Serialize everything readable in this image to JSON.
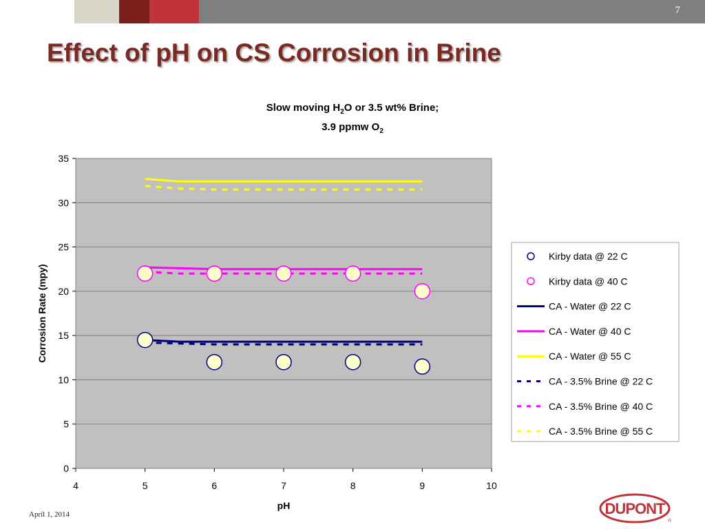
{
  "slide": {
    "title": "Effect of pH on CS Corrosion in Brine",
    "page_number": "7",
    "date": "April 1, 2014",
    "logo": "DUPONT",
    "colors": {
      "title": "#7a2a22",
      "bar_light": "#d9d5c9",
      "bar_red_dark": "#7a1f1a",
      "bar_red": "#c0333b",
      "bar_gray": "#7f7f7f"
    }
  },
  "chart_data": {
    "type": "scatter",
    "title_line1": [
      "Slow moving H",
      "2",
      "O or 3.5 wt% Brine;"
    ],
    "title_line2": [
      "3.9 ppmw O",
      "2"
    ],
    "xlabel": "pH",
    "ylabel": "Corrosion Rate (mpy)",
    "xlim": [
      4,
      10
    ],
    "ylim": [
      0,
      35
    ],
    "xticks": [
      "4",
      "5",
      "6",
      "7",
      "8",
      "9",
      "10"
    ],
    "yticks": [
      "0",
      "5",
      "10",
      "15",
      "20",
      "25",
      "30",
      "35"
    ],
    "grid": "horizontal",
    "legend_position": "right",
    "plot_background": "#c0c0c0",
    "series": [
      {
        "name": "Kirby data @ 22 C",
        "kind": "marker",
        "color": "#000080",
        "x": [
          5,
          6,
          7,
          8,
          9
        ],
        "y": [
          14.5,
          12,
          12,
          12,
          11.5
        ]
      },
      {
        "name": "Kirby data @ 40 C",
        "kind": "marker",
        "color": "#ff00ff",
        "x": [
          5,
          6,
          7,
          8,
          9
        ],
        "y": [
          22,
          22,
          22,
          22,
          20
        ]
      },
      {
        "name": "CA - Water @ 22 C",
        "kind": "line",
        "dash": "solid",
        "color": "#000080",
        "x": [
          5,
          5.5,
          6,
          7,
          8,
          9
        ],
        "y": [
          14.5,
          14.3,
          14.3,
          14.3,
          14.3,
          14.3
        ]
      },
      {
        "name": "CA - Water @ 40 C",
        "kind": "line",
        "dash": "solid",
        "color": "#ff00ff",
        "x": [
          5,
          5.5,
          6,
          7,
          8,
          9
        ],
        "y": [
          22.7,
          22.6,
          22.5,
          22.5,
          22.5,
          22.5
        ]
      },
      {
        "name": "CA - Water @ 55 C",
        "kind": "line",
        "dash": "solid",
        "color": "#ffff00",
        "x": [
          5,
          5.5,
          6,
          7,
          8,
          9
        ],
        "y": [
          32.7,
          32.4,
          32.4,
          32.4,
          32.4,
          32.4
        ]
      },
      {
        "name": "CA - 3.5% Brine @ 22 C",
        "kind": "line",
        "dash": "dashed",
        "color": "#000080",
        "x": [
          5,
          5.5,
          6,
          7,
          8,
          9
        ],
        "y": [
          14.2,
          14.1,
          14.0,
          14.0,
          14.0,
          14.0
        ]
      },
      {
        "name": "CA - 3.5% Brine @ 40 C",
        "kind": "line",
        "dash": "dashed",
        "color": "#ff00ff",
        "x": [
          5,
          5.5,
          6,
          7,
          8,
          9
        ],
        "y": [
          22.2,
          22.0,
          22.0,
          22.0,
          22.0,
          22.0
        ]
      },
      {
        "name": "CA - 3.5% Brine @ 55 C",
        "kind": "line",
        "dash": "dashed",
        "color": "#ffff00",
        "x": [
          5,
          5.5,
          6,
          7,
          8,
          9
        ],
        "y": [
          31.9,
          31.6,
          31.5,
          31.5,
          31.5,
          31.5
        ]
      }
    ]
  }
}
